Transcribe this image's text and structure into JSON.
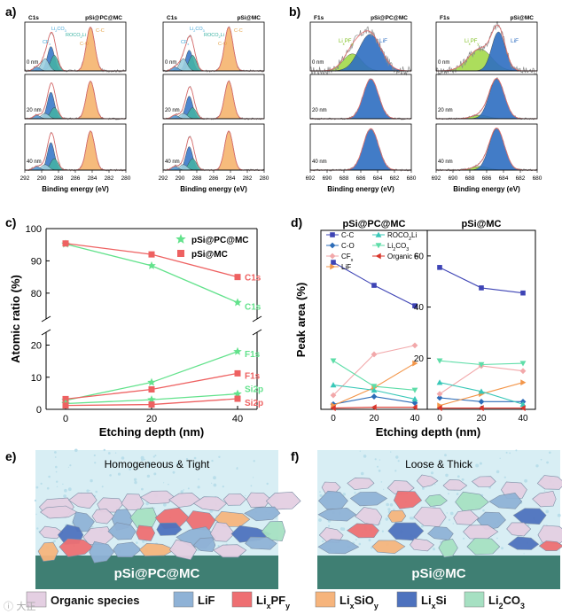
{
  "panels": {
    "a": "a)",
    "b": "b)",
    "c": "c)",
    "d": "d)",
    "e": "e)",
    "f": "f)"
  },
  "xps_a": {
    "element": "C1s",
    "samples": [
      "pSi@PC@MC",
      "pSi@MC"
    ],
    "depths": [
      "0 nm",
      "20 nm",
      "40 nm"
    ],
    "peaks": [
      "C-C",
      "C-O",
      "ROCO2Li",
      "Li2CO3",
      "CFx"
    ],
    "peak_labels": [
      "Li2CO3",
      "ROCO2Li",
      "CFx",
      "C-O",
      "C-C"
    ],
    "xlabel": "Binding energy (eV)",
    "xticks": [
      "292",
      "290",
      "288",
      "286",
      "284",
      "282",
      "280"
    ]
  },
  "xps_b": {
    "element": "F1s",
    "samples": [
      "pSi@PC@MC",
      "pSi@MC"
    ],
    "depths": [
      "0 nm",
      "20 nm",
      "40 nm"
    ],
    "peak_labels": [
      "LixPFy",
      "LiF"
    ],
    "xlabel": "Binding energy (eV)",
    "xticks": [
      "692",
      "690",
      "688",
      "686",
      "684",
      "682",
      "680"
    ]
  },
  "colors": {
    "cc": "#F5B46E",
    "co": "#3A79C9",
    "roco": "#2E62B6",
    "li2co3": "#7FD9C0",
    "cfx": "#9CCFE0",
    "lif": "#2E6EC1",
    "lipf": "#A3D94A",
    "raw": "#8A8A8A",
    "fit": "#E06A6A",
    "pc_green": "#63E28C",
    "mc_red": "#EE6161",
    "blue_line": "#3E44B5",
    "teal_line": "#39C8B8",
    "pink_line": "#F2A8AA",
    "orange_line": "#F3964A",
    "red_line": "#D9352B"
  },
  "chart_data": [
    {
      "type": "line",
      "title": "",
      "xlabel": "Etching depth (nm)",
      "ylabel": "Atomic ratio (%)",
      "x": [
        0,
        20,
        40
      ],
      "xticks": [
        "0",
        "20",
        "40"
      ],
      "y_upper_ticks": [
        "80",
        "90",
        "100"
      ],
      "y_lower_ticks": [
        "0",
        "10",
        "20"
      ],
      "ylim_upper": [
        72,
        100
      ],
      "ylim_lower": [
        0,
        24
      ],
      "legend": [
        "pSi@PC@MC",
        "pSi@MC"
      ],
      "series": [
        {
          "name": "C1s",
          "sample": "pSi@PC@MC",
          "values": [
            95.2,
            88.5,
            77.1
          ],
          "label": "C1s"
        },
        {
          "name": "C1s",
          "sample": "pSi@MC",
          "values": [
            95.4,
            92.0,
            85.0
          ],
          "label": "C1s"
        },
        {
          "name": "F1s",
          "sample": "pSi@PC@MC",
          "values": [
            2.8,
            8.4,
            18.0
          ],
          "label": "F1s"
        },
        {
          "name": "F1s",
          "sample": "pSi@MC",
          "values": [
            3.2,
            6.2,
            11.2
          ],
          "label": "F1s"
        },
        {
          "name": "Si2p",
          "sample": "pSi@PC@MC",
          "values": [
            1.8,
            3.0,
            4.8
          ],
          "label": "Si2p"
        },
        {
          "name": "Si2p",
          "sample": "pSi@MC",
          "values": [
            1.2,
            1.5,
            3.3
          ],
          "label": "Si2p"
        }
      ]
    },
    {
      "type": "line",
      "title": "",
      "titles": [
        "pSi@PC@MC",
        "pSi@MC"
      ],
      "xlabel": "Etching depth (nm)",
      "ylabel": "Peak area (%)",
      "x": [
        0,
        20,
        40
      ],
      "xticks": [
        "0",
        "20",
        "40"
      ],
      "yticks": [
        "20",
        "40",
        "60"
      ],
      "ylim": [
        0,
        70
      ],
      "legend": [
        "C-C",
        "C-O",
        "CFx",
        "LiF",
        "ROCO2Li",
        "Li2CO3",
        "Organic F"
      ],
      "series_pc": [
        {
          "name": "C-C",
          "values": [
            57.5,
            48.5,
            40.5
          ]
        },
        {
          "name": "C-O",
          "values": [
            2.0,
            5.0,
            2.5
          ]
        },
        {
          "name": "CFx",
          "values": [
            5.5,
            21.5,
            25.0
          ]
        },
        {
          "name": "LiF",
          "values": [
            1.5,
            8.5,
            18.0
          ]
        },
        {
          "name": "ROCO2Li",
          "values": [
            9.5,
            7.5,
            4.0
          ]
        },
        {
          "name": "Li2CO3",
          "values": [
            19.0,
            9.0,
            7.5
          ]
        },
        {
          "name": "Organic F",
          "values": [
            0.5,
            0.8,
            0.8
          ]
        }
      ],
      "series_mc": [
        {
          "name": "C-C",
          "values": [
            55.5,
            47.5,
            45.5
          ]
        },
        {
          "name": "C-O",
          "values": [
            4.5,
            3.0,
            3.0
          ]
        },
        {
          "name": "CFx",
          "values": [
            6.0,
            17.0,
            15.0
          ]
        },
        {
          "name": "LiF",
          "values": [
            1.5,
            6.0,
            10.5
          ]
        },
        {
          "name": "ROCO2Li",
          "values": [
            10.5,
            7.0,
            2.0
          ]
        },
        {
          "name": "Li2CO3",
          "values": [
            19.0,
            17.5,
            18.0
          ]
        },
        {
          "name": "Organic F",
          "values": [
            0.5,
            0.5,
            0.5
          ]
        }
      ]
    }
  ],
  "schematic": {
    "e_title": "Homogeneous & Tight",
    "f_title": "Loose & Thick",
    "e_substrate": "pSi@PC@MC",
    "f_substrate": "pSi@MC"
  },
  "bottom_legend": [
    {
      "name": "Organic species",
      "color": "#E4CFE2"
    },
    {
      "name": "LiF",
      "color": "#8FB2D6"
    },
    {
      "name": "LixPFy",
      "color": "#EE6F72"
    },
    {
      "name": "LixSiOy",
      "color": "#F6B47C"
    },
    {
      "name": "LixSi",
      "color": "#4E72BE"
    },
    {
      "name": "Li2CO3",
      "color": "#A6E0C2"
    }
  ],
  "watermark": "ⓘ 大正"
}
